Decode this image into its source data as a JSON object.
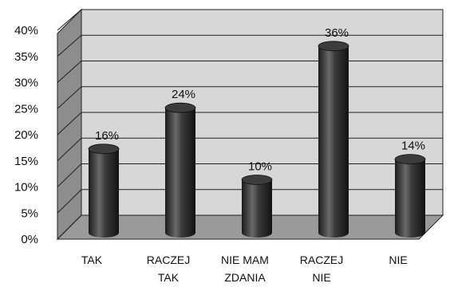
{
  "chart_data": {
    "type": "bar",
    "categories": [
      [
        "TAK"
      ],
      [
        "RACZEJ",
        "TAK"
      ],
      [
        "NIE MAM",
        "ZDANIA"
      ],
      [
        "RACZEJ",
        "NIE"
      ],
      [
        "NIE"
      ]
    ],
    "values": [
      16,
      24,
      10,
      36,
      14
    ],
    "data_labels": [
      "16%",
      "24%",
      "10%",
      "36%",
      "14%"
    ],
    "y_ticks": [
      "0%",
      "5%",
      "10%",
      "15%",
      "20%",
      "25%",
      "30%",
      "35%",
      "40%"
    ],
    "ylim": [
      0,
      40
    ],
    "grid": true,
    "legend": "none",
    "title": "",
    "xlabel": "",
    "ylabel": "",
    "colors": {
      "bar": "#2e2e2e",
      "wall": "#d7d7d7",
      "side_wall": "#8d8d8d",
      "floor": "#9a9a9a",
      "grid": "#222222"
    }
  }
}
